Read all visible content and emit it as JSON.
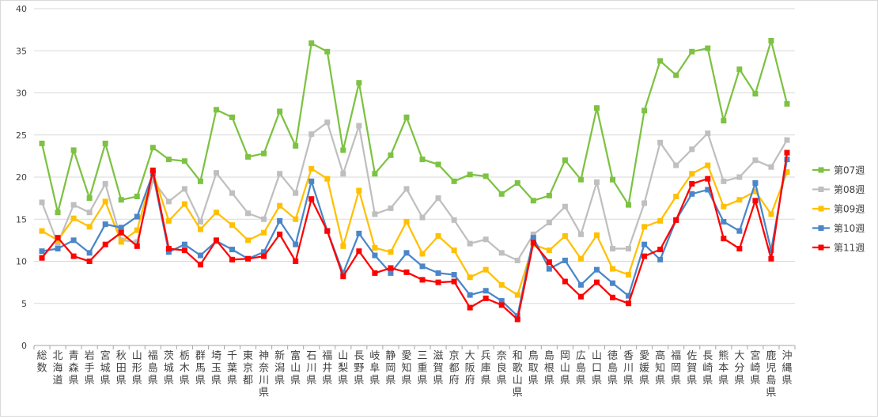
{
  "chart_data": {
    "type": "line",
    "title": "",
    "xlabel": "",
    "ylabel": "",
    "ylim": [
      0,
      40
    ],
    "yticks": [
      0,
      5,
      10,
      15,
      20,
      25,
      30,
      35,
      40
    ],
    "grid": true,
    "legend_position": "right",
    "categories": [
      "総数",
      "北海道",
      "青森県",
      "岩手県",
      "宮城県",
      "秋田県",
      "山形県",
      "福島県",
      "茨城県",
      "栃木県",
      "群馬県",
      "埼玉県",
      "千葉県",
      "東京都",
      "神奈川県",
      "新潟県",
      "富山県",
      "石川県",
      "福井県",
      "山梨県",
      "長野県",
      "岐阜県",
      "静岡県",
      "愛知県",
      "三重県",
      "滋賀県",
      "京都府",
      "大阪府",
      "兵庫県",
      "奈良県",
      "和歌山県",
      "鳥取県",
      "島根県",
      "岡山県",
      "広島県",
      "山口県",
      "徳島県",
      "香川県",
      "愛媛県",
      "高知県",
      "福岡県",
      "佐賀県",
      "長崎県",
      "熊本県",
      "大分県",
      "宮崎県",
      "鹿児島県",
      "沖縄県"
    ],
    "series": [
      {
        "name": "第07週",
        "color": "#7dc242",
        "values": [
          24.0,
          15.8,
          23.2,
          17.5,
          24.0,
          17.3,
          17.7,
          23.5,
          22.1,
          21.9,
          19.5,
          28.0,
          27.1,
          22.4,
          22.8,
          27.8,
          23.7,
          35.9,
          34.9,
          23.2,
          31.2,
          20.4,
          22.6,
          27.1,
          22.1,
          21.5,
          19.5,
          20.3,
          20.1,
          18.0,
          19.3,
          17.2,
          17.8,
          22.0,
          19.7,
          28.2,
          19.7,
          16.7,
          27.9,
          33.8,
          32.1,
          34.9,
          35.3,
          26.7,
          32.8,
          29.9,
          36.2,
          28.7
        ]
      },
      {
        "name": "第08週",
        "color": "#bfbfbf",
        "values": [
          17.0,
          12.1,
          16.7,
          15.8,
          19.2,
          12.5,
          12.3,
          19.6,
          17.1,
          18.6,
          14.7,
          20.5,
          18.1,
          15.7,
          15.0,
          20.4,
          18.1,
          25.1,
          26.5,
          20.4,
          26.1,
          15.6,
          16.3,
          18.6,
          15.2,
          17.5,
          14.9,
          12.1,
          12.6,
          11.0,
          10.1,
          13.2,
          14.6,
          16.5,
          13.2,
          19.4,
          11.5,
          11.5,
          16.9,
          24.1,
          21.4,
          23.3,
          25.2,
          19.5,
          20.0,
          22.0,
          21.2,
          24.4
        ]
      },
      {
        "name": "第09週",
        "color": "#ffc000",
        "values": [
          13.6,
          12.5,
          15.1,
          14.1,
          17.1,
          12.3,
          13.7,
          20.6,
          14.8,
          16.8,
          13.8,
          15.8,
          14.3,
          12.5,
          13.4,
          16.6,
          15.0,
          21.0,
          19.8,
          11.8,
          18.4,
          11.6,
          11.1,
          14.7,
          10.9,
          13.0,
          11.3,
          8.1,
          9.0,
          7.2,
          6.0,
          12.0,
          11.3,
          13.0,
          10.3,
          13.1,
          9.1,
          8.4,
          14.1,
          14.8,
          17.7,
          20.4,
          21.4,
          16.5,
          17.3,
          18.3,
          15.6,
          20.6
        ]
      },
      {
        "name": "第10週",
        "color": "#4a86c8",
        "values": [
          11.2,
          11.5,
          12.5,
          11.0,
          14.4,
          14.0,
          15.3,
          20.4,
          11.1,
          12.0,
          10.7,
          12.4,
          11.4,
          10.3,
          11.1,
          14.8,
          12.0,
          19.5,
          13.6,
          8.6,
          13.3,
          10.7,
          8.6,
          11.0,
          9.4,
          8.6,
          8.4,
          6.0,
          6.5,
          5.3,
          3.5,
          12.8,
          9.1,
          10.1,
          7.2,
          9.0,
          7.4,
          5.9,
          12.0,
          10.2,
          14.9,
          18.0,
          18.5,
          14.7,
          13.6,
          19.3,
          11.3,
          22.1
        ]
      },
      {
        "name": "第11週",
        "color": "#ff0000",
        "values": [
          10.4,
          12.8,
          10.6,
          10.0,
          12.0,
          13.4,
          11.8,
          20.8,
          11.5,
          11.3,
          9.6,
          12.5,
          10.2,
          10.3,
          10.6,
          13.2,
          10.0,
          17.4,
          13.6,
          8.2,
          11.2,
          8.6,
          9.2,
          8.7,
          7.8,
          7.5,
          7.6,
          4.5,
          5.6,
          4.8,
          3.1,
          12.2,
          9.9,
          7.6,
          5.8,
          7.5,
          5.7,
          5.0,
          10.6,
          11.4,
          14.9,
          19.2,
          19.8,
          12.7,
          11.5,
          17.2,
          10.3,
          22.9
        ]
      }
    ]
  }
}
